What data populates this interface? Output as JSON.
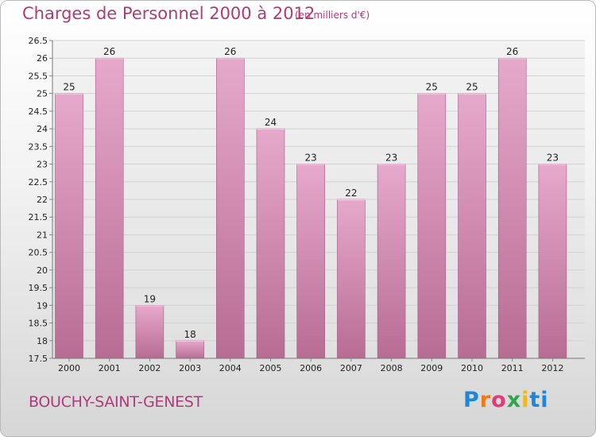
{
  "header": {
    "title": "Charges de Personnel 2000 à 2012",
    "subtitle": "(en milliers d'€)"
  },
  "footer": {
    "place": "BOUCHY-SAINT-GENEST",
    "logo": [
      "P",
      "r",
      "o",
      "x",
      "i",
      "ti"
    ]
  },
  "colors": {
    "bar": "#c9799f",
    "bar_light": "#e6a9cb",
    "accent": "#b03a7a"
  },
  "chart_data": {
    "type": "bar",
    "title": "Charges de Personnel 2000 à 2012",
    "subtitle": "(en milliers d'€)",
    "categories": [
      "2000",
      "2001",
      "2002",
      "2003",
      "2004",
      "2005",
      "2006",
      "2007",
      "2008",
      "2009",
      "2010",
      "2011",
      "2012"
    ],
    "values": [
      25,
      26,
      19,
      18,
      26,
      24,
      23,
      22,
      23,
      25,
      25,
      26,
      23
    ],
    "ylim": [
      17.5,
      26.5
    ],
    "yticks": [
      "17.5",
      "18",
      "18.5",
      "19",
      "19.5",
      "20",
      "20.5",
      "21",
      "21.5",
      "22",
      "22.5",
      "23",
      "23.5",
      "24",
      "24.5",
      "25",
      "25.5",
      "26",
      "26.5"
    ],
    "grid": true,
    "data_labels": true
  }
}
